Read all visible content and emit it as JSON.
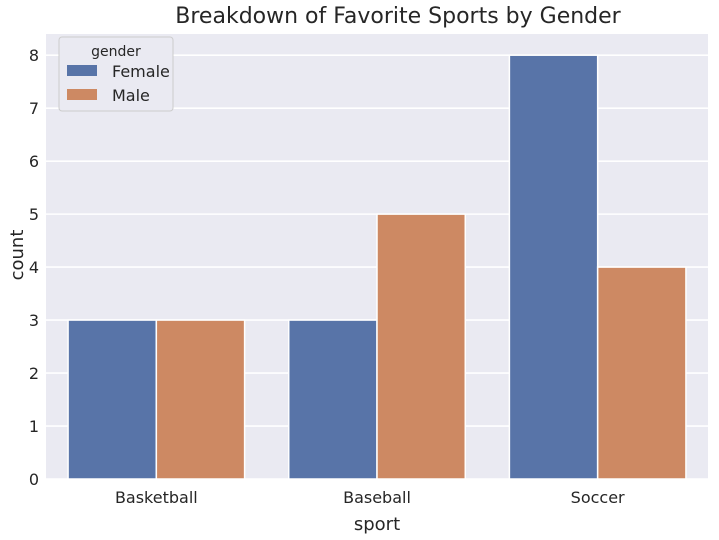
{
  "chart_data": {
    "type": "bar",
    "title": "Breakdown of Favorite Sports by Gender",
    "xlabel": "sport",
    "ylabel": "count",
    "categories": [
      "Basketball",
      "Baseball",
      "Soccer"
    ],
    "series": [
      {
        "name": "Female",
        "values": [
          3,
          3,
          8
        ],
        "color": "#5874a8"
      },
      {
        "name": "Male",
        "values": [
          3,
          5,
          4
        ],
        "color": "#cd8963"
      }
    ],
    "ylim": [
      0,
      8.4
    ],
    "yticks": [
      "0",
      "1",
      "2",
      "3",
      "4",
      "5",
      "6",
      "7",
      "8"
    ],
    "legend": {
      "title": "gender",
      "placement": "top-left"
    },
    "grid": true,
    "background": "#eaeaf2"
  }
}
